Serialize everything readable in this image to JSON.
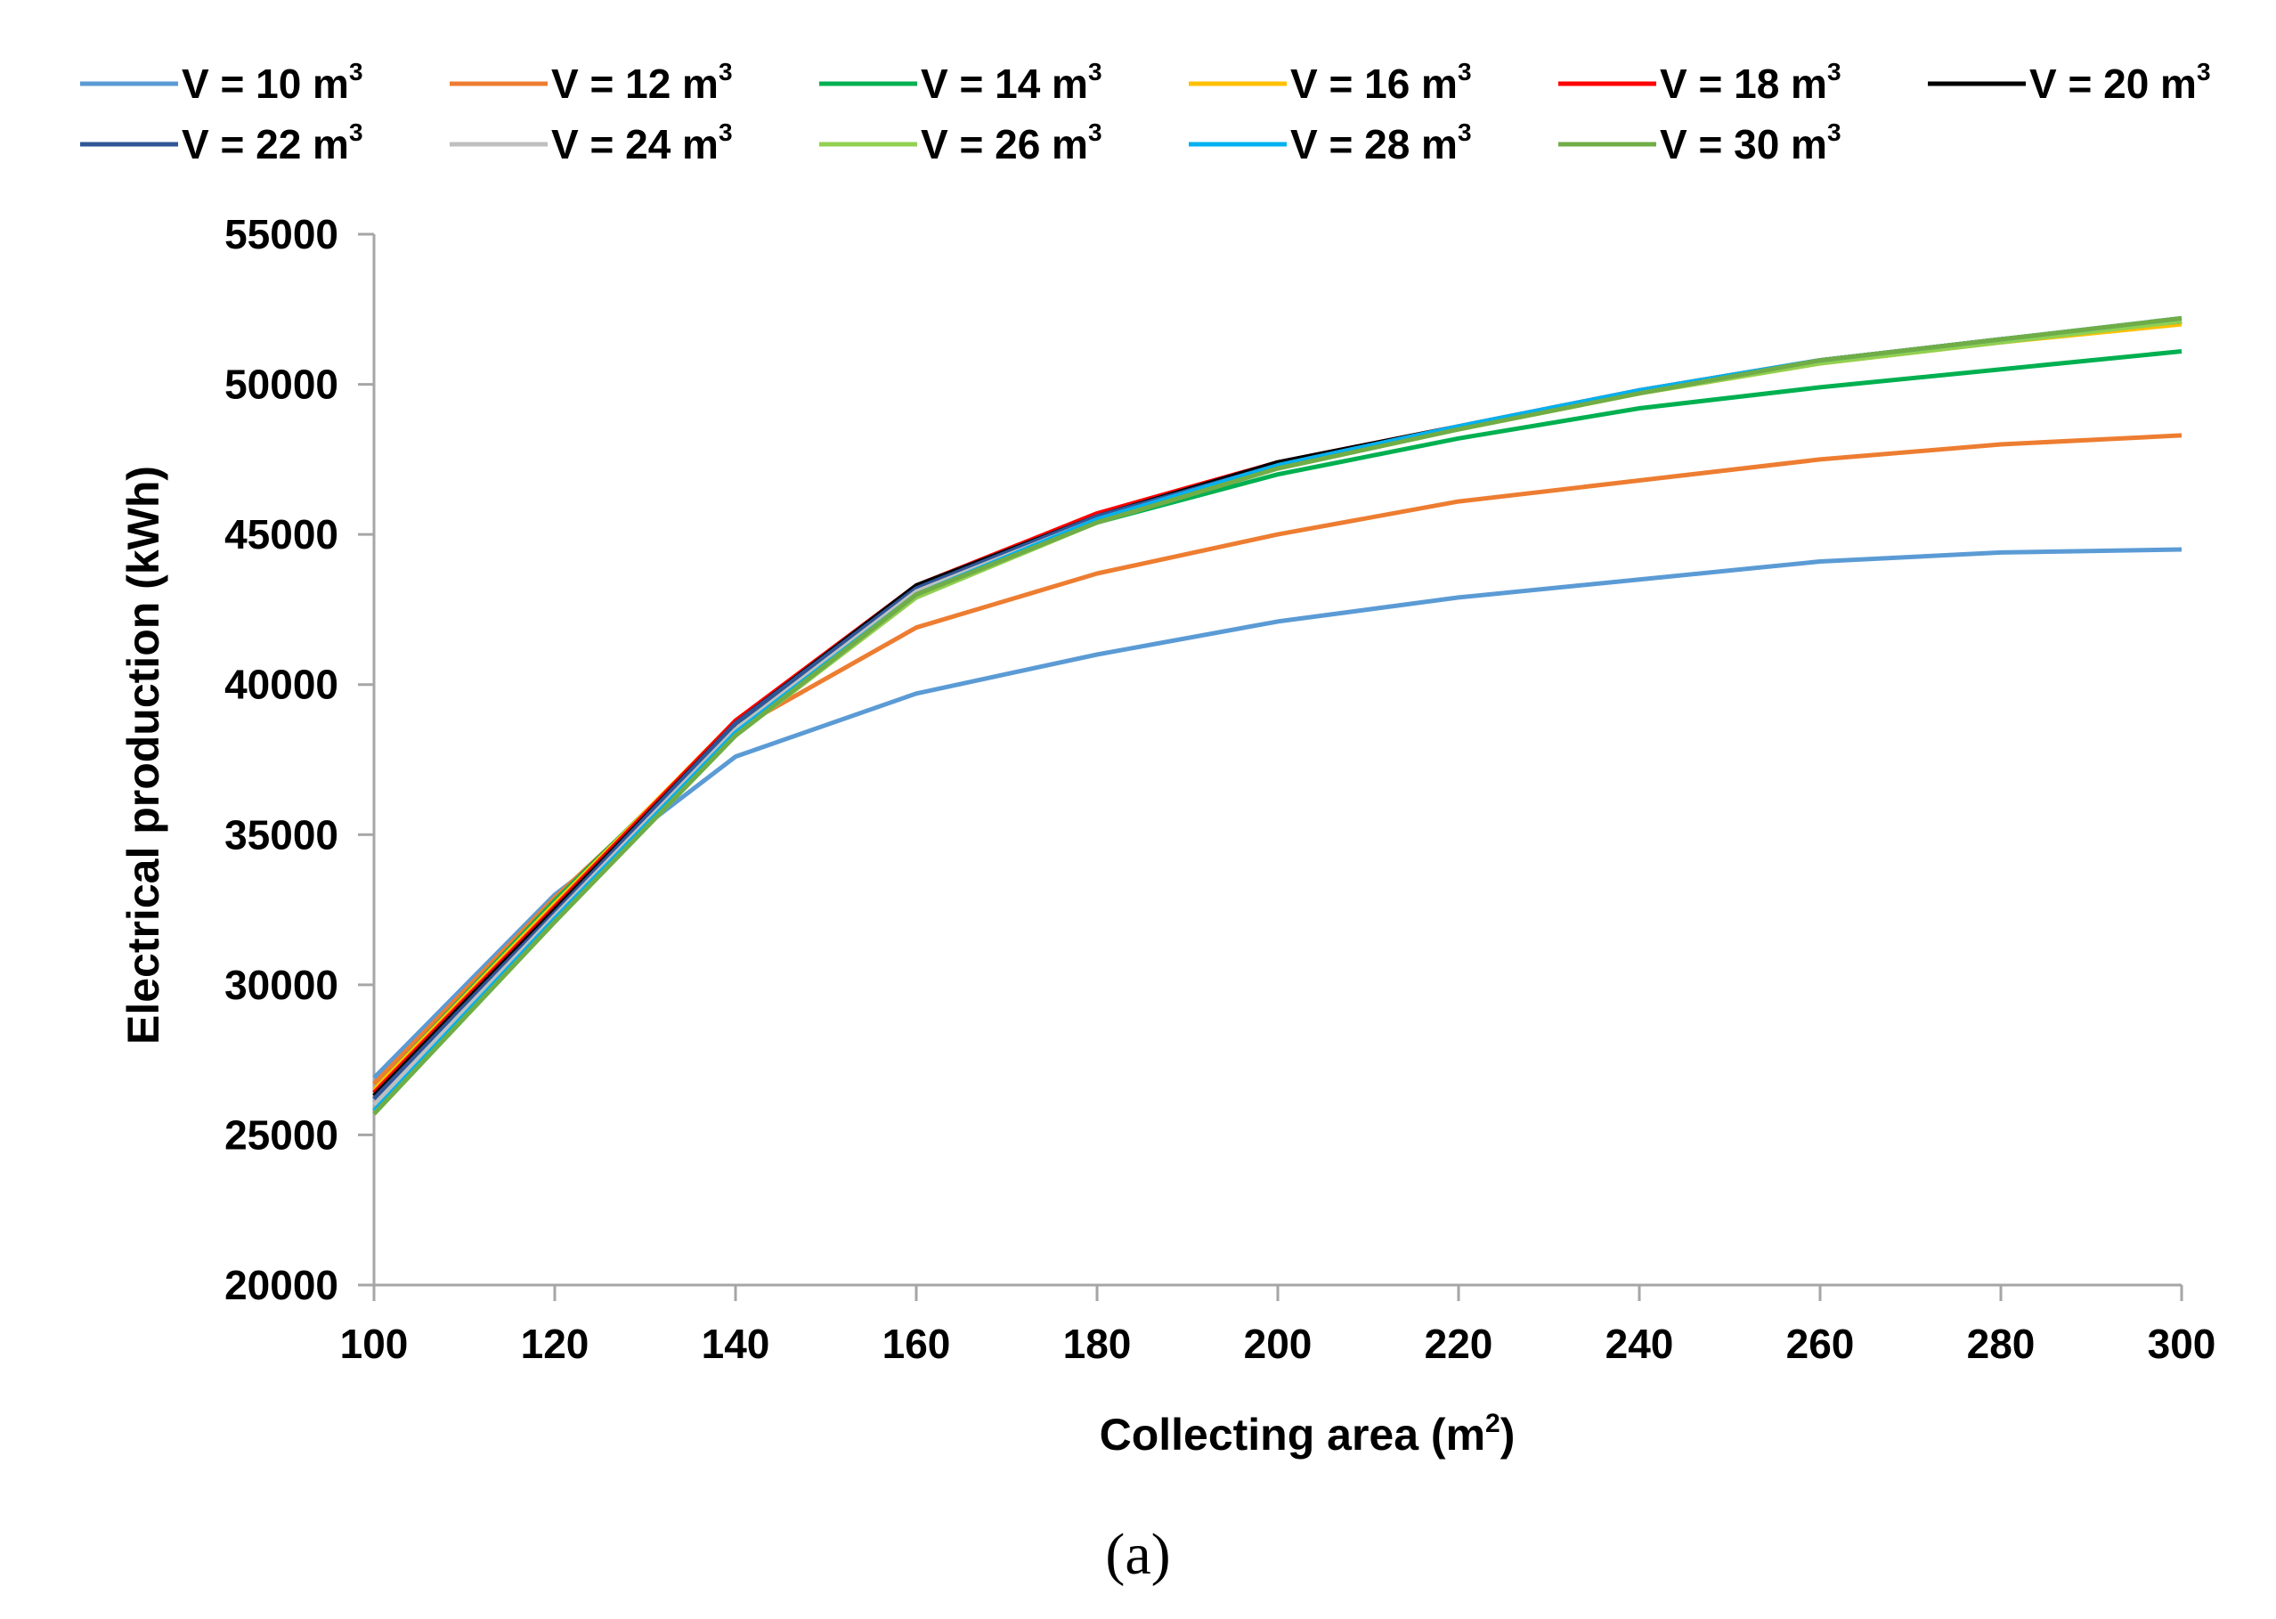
{
  "chart_data": {
    "type": "line",
    "title": "",
    "caption": "(a)",
    "xlabel": "Collecting area (m",
    "xlabel_sup": "2",
    "xlabel_end": ")",
    "ylabel": "Electrical production (kWh)",
    "x": [
      100,
      120,
      140,
      160,
      180,
      200,
      220,
      240,
      260,
      280,
      300
    ],
    "xlim": [
      100,
      300
    ],
    "ylim": [
      20000,
      55000
    ],
    "xticks": [
      "100",
      "120",
      "140",
      "160",
      "180",
      "200",
      "220",
      "240",
      "260",
      "280",
      "300"
    ],
    "yticks": [
      "20000",
      "25000",
      "30000",
      "35000",
      "40000",
      "45000",
      "50000",
      "55000"
    ],
    "grid": false,
    "legend_position": "top",
    "series": [
      {
        "name": "V = 10 m",
        "sup": "3",
        "color": "#5B9BD5",
        "values": [
          26900,
          33000,
          37600,
          39700,
          41000,
          42100,
          42900,
          43500,
          44100,
          44400,
          44500
        ]
      },
      {
        "name": "V = 12 m",
        "sup": "3",
        "color": "#ED7D31",
        "values": [
          26700,
          32900,
          38500,
          41900,
          43700,
          45000,
          46100,
          46800,
          47500,
          48000,
          48300
        ]
      },
      {
        "name": "V = 14 m",
        "sup": "3",
        "color": "#00B050",
        "values": [
          26500,
          32800,
          38700,
          43000,
          45400,
          47000,
          48200,
          49200,
          49900,
          50500,
          51100
        ]
      },
      {
        "name": "V = 16 m",
        "sup": "3",
        "color": "#FFC000",
        "values": [
          26500,
          32700,
          38800,
          43200,
          45600,
          47300,
          48500,
          49700,
          50700,
          51400,
          52000
        ]
      },
      {
        "name": "V = 18 m",
        "sup": "3",
        "color": "#FF0000",
        "values": [
          26400,
          32600,
          38800,
          43300,
          45700,
          47400,
          48600,
          49800,
          50800,
          51500,
          52100
        ]
      },
      {
        "name": "V = 20 m",
        "sup": "3",
        "color": "#000000",
        "values": [
          26300,
          32500,
          38700,
          43300,
          45600,
          47400,
          48600,
          49800,
          50800,
          51500,
          52100
        ]
      },
      {
        "name": "V = 22 m",
        "sup": "3",
        "color": "#2F5597",
        "values": [
          26200,
          32400,
          38700,
          43200,
          45600,
          47300,
          48600,
          49800,
          50800,
          51500,
          52100
        ]
      },
      {
        "name": "V = 24 m",
        "sup": "3",
        "color": "#BFBFBF",
        "values": [
          26000,
          32300,
          38500,
          43100,
          45500,
          47300,
          48600,
          49800,
          50800,
          51500,
          52200
        ]
      },
      {
        "name": "V = 26 m",
        "sup": "3",
        "color": "#92D050",
        "values": [
          25700,
          32100,
          38300,
          42900,
          45400,
          47200,
          48500,
          49700,
          50700,
          51400,
          52100
        ]
      },
      {
        "name": "V = 28 m",
        "sup": "3",
        "color": "#00B0F0",
        "values": [
          25800,
          32200,
          38400,
          43000,
          45500,
          47300,
          48600,
          49800,
          50800,
          51500,
          52200
        ]
      },
      {
        "name": "V = 30 m",
        "sup": "3",
        "color": "#70AD47",
        "values": [
          25700,
          32100,
          38300,
          43000,
          45400,
          47200,
          48500,
          49700,
          50800,
          51500,
          52200
        ]
      }
    ]
  },
  "axis_color": "#A6A6A6"
}
